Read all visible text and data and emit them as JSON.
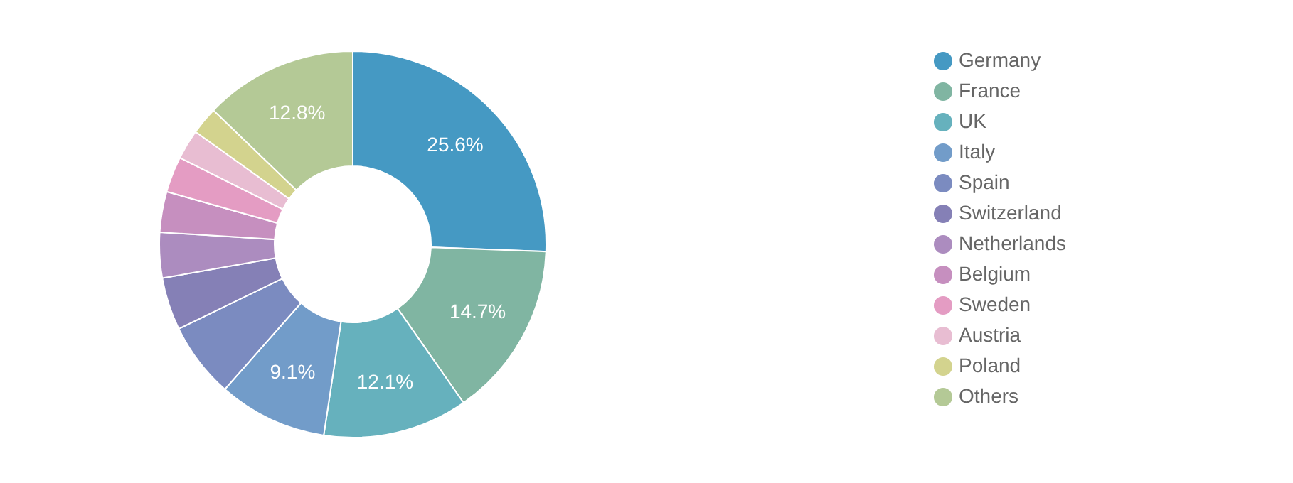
{
  "chart_data": {
    "type": "donut",
    "categories": [
      "Germany",
      "France",
      "UK",
      "Italy",
      "Spain",
      "Switzerland",
      "Netherlands",
      "Belgium",
      "Sweden",
      "Austria",
      "Poland",
      "Others"
    ],
    "values": [
      25.6,
      14.7,
      12.1,
      9.1,
      6.3,
      4.4,
      3.8,
      3.4,
      3.0,
      2.5,
      2.3,
      12.8
    ],
    "value_labels": [
      "25.6%",
      "14.7%",
      "12.1%",
      "9.1%",
      null,
      null,
      null,
      null,
      null,
      null,
      null,
      "12.8%"
    ],
    "colors": [
      "#4599c3",
      "#80b5a2",
      "#66b1bd",
      "#729cc9",
      "#7b8bc0",
      "#8580b6",
      "#ac8cbf",
      "#c68fbf",
      "#e49cc3",
      "#e8bdd2",
      "#d3d38e",
      "#b4c996"
    ],
    "legend": "right"
  }
}
